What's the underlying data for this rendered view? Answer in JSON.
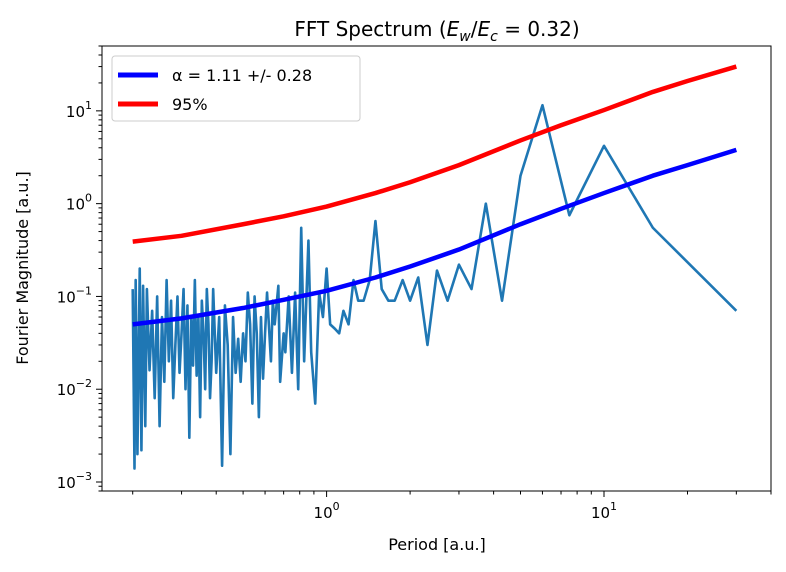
{
  "chart_data": {
    "type": "line",
    "title_prefix": "FFT Spectrum (",
    "title_math": "E",
    "title_sub_w": "w",
    "title_slash": "/",
    "title_sub_c": "c",
    "title_eq": " = 0.32)",
    "xlabel": "Period [a.u.]",
    "ylabel": "Fourier Magnitude [a.u.]",
    "xscale": "log",
    "yscale": "log",
    "xlim": [
      0.155,
      40
    ],
    "ylim": [
      0.0008,
      50
    ],
    "x_ticks": [
      {
        "value": 1,
        "base": "10",
        "exp": "0"
      },
      {
        "value": 10,
        "base": "10",
        "exp": "1"
      }
    ],
    "y_ticks": [
      {
        "value": 0.001,
        "base": "10",
        "exp": "−3"
      },
      {
        "value": 0.01,
        "base": "10",
        "exp": "−2"
      },
      {
        "value": 0.1,
        "base": "10",
        "exp": "−1"
      },
      {
        "value": 1,
        "base": "10",
        "exp": "0"
      },
      {
        "value": 10,
        "base": "10",
        "exp": "1"
      }
    ],
    "legend_position": "upper-left",
    "legend": [
      {
        "label": "α = 1.11 +/- 0.28",
        "color": "#0000ff"
      },
      {
        "label": "95%",
        "color": "#ff0000"
      }
    ],
    "series": [
      {
        "color": "#1f77b4",
        "x": [
          30,
          15,
          10,
          7.5,
          6,
          5,
          4.29,
          3.75,
          3.33,
          3,
          2.73,
          2.5,
          2.31,
          2.14,
          2,
          1.88,
          1.76,
          1.67,
          1.58,
          1.5,
          1.43,
          1.36,
          1.3,
          1.25,
          1.2,
          1.15,
          1.11,
          1.07,
          1.03,
          1.0,
          0.97,
          0.94,
          0.91,
          0.88,
          0.86,
          0.83,
          0.81,
          0.79,
          0.77,
          0.75,
          0.73,
          0.71,
          0.7,
          0.68,
          0.67,
          0.65,
          0.64,
          0.63,
          0.61,
          0.6,
          0.59,
          0.58,
          0.57,
          0.56,
          0.55,
          0.54,
          0.53,
          0.52,
          0.51,
          0.5,
          0.49,
          0.48,
          0.47,
          0.46,
          0.45,
          0.44,
          0.43,
          0.42,
          0.41,
          0.4,
          0.39,
          0.385,
          0.38,
          0.375,
          0.37,
          0.365,
          0.36,
          0.355,
          0.35,
          0.345,
          0.34,
          0.335,
          0.33,
          0.325,
          0.32,
          0.315,
          0.31,
          0.305,
          0.3,
          0.295,
          0.29,
          0.285,
          0.28,
          0.275,
          0.27,
          0.265,
          0.26,
          0.255,
          0.25,
          0.245,
          0.24,
          0.235,
          0.23,
          0.225,
          0.222,
          0.218,
          0.215,
          0.212,
          0.208,
          0.205,
          0.203,
          0.2
        ],
        "y": [
          0.07,
          0.55,
          4.2,
          0.75,
          11.5,
          2.0,
          0.09,
          1.0,
          0.12,
          0.22,
          0.09,
          0.19,
          0.03,
          0.16,
          0.09,
          0.15,
          0.09,
          0.09,
          0.12,
          0.65,
          0.15,
          0.09,
          0.09,
          0.15,
          0.05,
          0.07,
          0.04,
          0.045,
          0.05,
          0.2,
          0.06,
          0.11,
          0.007,
          0.025,
          0.4,
          0.02,
          0.55,
          0.01,
          0.11,
          0.015,
          0.1,
          0.025,
          0.04,
          0.012,
          0.13,
          0.05,
          0.09,
          0.02,
          0.11,
          0.04,
          0.013,
          0.06,
          0.005,
          0.04,
          0.1,
          0.007,
          0.05,
          0.11,
          0.02,
          0.04,
          0.012,
          0.035,
          0.015,
          0.06,
          0.002,
          0.03,
          0.08,
          0.0015,
          0.06,
          0.015,
          0.12,
          0.02,
          0.008,
          0.05,
          0.12,
          0.01,
          0.04,
          0.09,
          0.005,
          0.06,
          0.014,
          0.15,
          0.018,
          0.06,
          0.003,
          0.08,
          0.01,
          0.12,
          0.04,
          0.015,
          0.1,
          0.03,
          0.008,
          0.09,
          0.02,
          0.15,
          0.012,
          0.06,
          0.004,
          0.1,
          0.008,
          0.07,
          0.016,
          0.12,
          0.004,
          0.13,
          0.0022,
          0.2,
          0.002,
          0.15,
          0.0014,
          0.12
        ]
      },
      {
        "color": "#0000ff",
        "x": [
          0.2,
          0.3,
          0.5,
          0.7,
          1,
          1.5,
          2,
          3,
          5,
          7,
          10,
          15,
          20,
          30
        ],
        "y": [
          0.05,
          0.058,
          0.075,
          0.092,
          0.115,
          0.16,
          0.21,
          0.32,
          0.6,
          0.88,
          1.3,
          2.0,
          2.6,
          3.8
        ]
      },
      {
        "color": "#ff0000",
        "x": [
          0.2,
          0.3,
          0.5,
          0.7,
          1,
          1.5,
          2,
          3,
          5,
          7,
          10,
          15,
          20,
          30
        ],
        "y": [
          0.39,
          0.45,
          0.6,
          0.73,
          0.93,
          1.3,
          1.7,
          2.6,
          4.8,
          7.0,
          10.2,
          16,
          21,
          30
        ]
      }
    ]
  }
}
